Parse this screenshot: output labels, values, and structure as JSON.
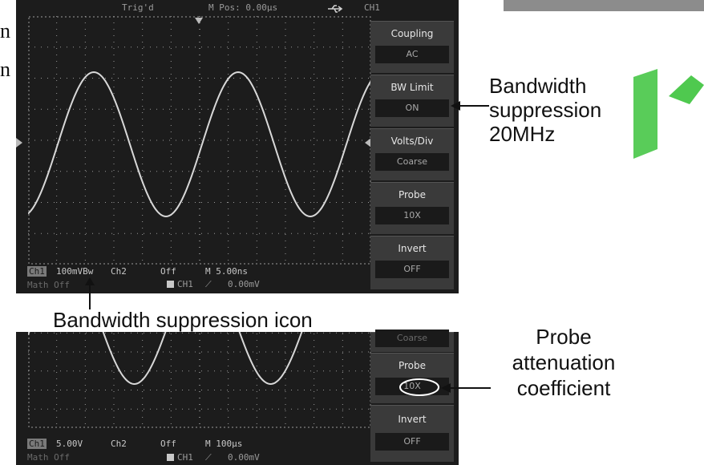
{
  "top_scope": {
    "status": {
      "trig": "Trig'd",
      "mpos": "M Pos: 0.00µs",
      "channel": "CH1",
      "usb_icon": "usb-icon"
    },
    "menu": [
      {
        "title": "Coupling",
        "value": "AC"
      },
      {
        "title": "BW  Limit",
        "value": "ON"
      },
      {
        "title": "Volts/Div",
        "value": "Coarse"
      },
      {
        "title": "Probe",
        "value": "10X"
      },
      {
        "title": "Invert",
        "value": "OFF"
      }
    ],
    "bottom": {
      "ch1": "Ch1",
      "ch1_val": "100mVBw",
      "ch2": "Ch2",
      "ch2_val": "Off",
      "time": "M 5.00ns",
      "math": "Math  Off",
      "trig_src": "CH1",
      "trig_level": "0.00mV"
    }
  },
  "bottom_scope": {
    "menu": [
      {
        "title": "Coarse"
      },
      {
        "title": "Probe",
        "value": "10X"
      },
      {
        "title": "Invert",
        "value": "OFF"
      }
    ],
    "bottom": {
      "ch1": "Ch1",
      "ch1_val": "5.00V",
      "ch2": "Ch2",
      "ch2_val": "Off",
      "time": "M 100µs",
      "math": "Math  Off",
      "trig_src": "CH1",
      "trig_level": "0.00mV"
    }
  },
  "annotations": {
    "bw_line1": "Bandwidth",
    "bw_line2": "suppression",
    "bw_line3": "20MHz",
    "bw_icon_label": "Bandwidth suppression icon",
    "probe_line1": "Probe",
    "probe_line2": "attenuation",
    "probe_line3": "coefficient",
    "cut_text_1": "n",
    "cut_text_2": "n"
  },
  "colors": {
    "screen": "#1c1c1c",
    "grid": "#9a9a9a",
    "trace": "#d8d8d8",
    "watermark": "#3cc33c"
  }
}
